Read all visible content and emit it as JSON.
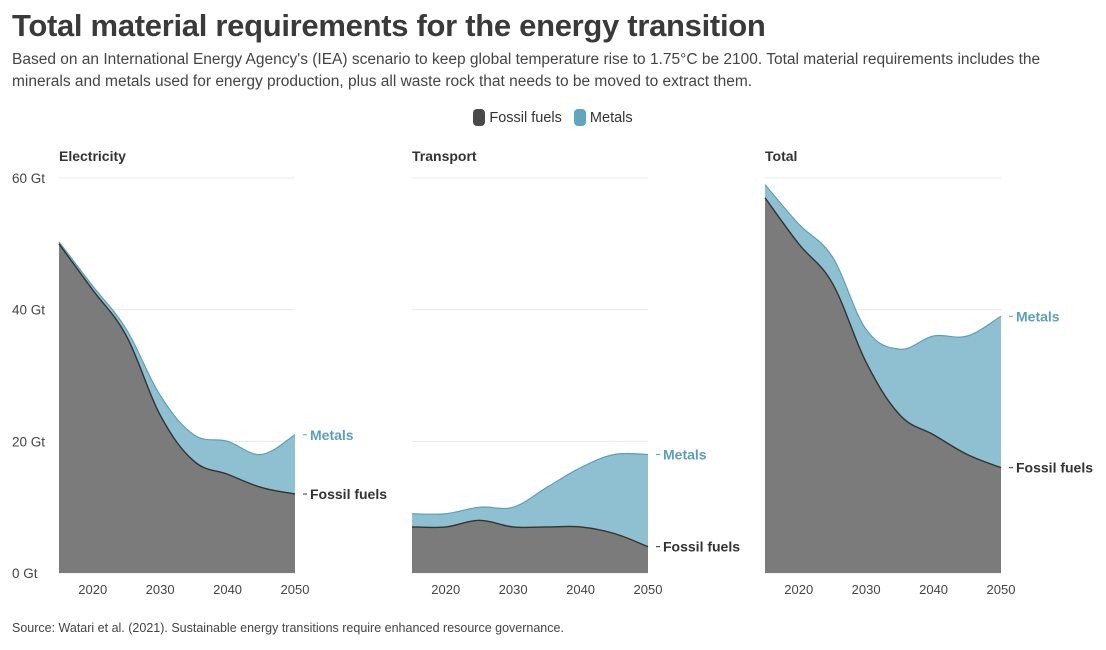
{
  "header": {
    "title": "Total material requirements for the energy transition",
    "subtitle": "Based on an International Energy Agency's (IEA) scenario to keep global temperature rise to 1.75°C be 2100. Total material requirements includes the minerals and metals used for energy production, plus all waste rock that needs to be moved to extract them."
  },
  "legend": [
    {
      "label": "Fossil fuels",
      "color": "#4a4a4a"
    },
    {
      "label": "Metals",
      "color": "#62a5be"
    }
  ],
  "source": "Source: Watari et al. (2021). Sustainable energy transitions require enhanced resource governance.",
  "colors": {
    "fossil_fill": "#7b7b7b",
    "fossil_line": "#333333",
    "metals_fill": "#8ec0d1",
    "metals_line": "#5e9fb8",
    "metals_label": "#5e9fb8",
    "fossil_label": "#333333",
    "grid": "#e8e8e8"
  },
  "chart_data": [
    {
      "type": "area",
      "stacked": true,
      "title": "Electricity",
      "x": [
        2015,
        2020,
        2025,
        2030,
        2035,
        2040,
        2045,
        2050
      ],
      "xticks": [
        2020,
        2030,
        2040,
        2050
      ],
      "xlim": [
        2015,
        2050
      ],
      "ylim": [
        0,
        60
      ],
      "yticks": [
        0,
        20,
        40,
        60
      ],
      "ytick_labels": [
        "0 Gt",
        "20 Gt",
        "40 Gt",
        "60 Gt"
      ],
      "series": [
        {
          "name": "Fossil fuels",
          "values": [
            50,
            43,
            36,
            24,
            17,
            15,
            13,
            12
          ]
        },
        {
          "name": "Metals",
          "values": [
            0.3,
            0.6,
            1,
            3,
            4,
            5,
            5,
            9
          ]
        }
      ],
      "end_labels": [
        "Metals",
        "Fossil fuels"
      ]
    },
    {
      "type": "area",
      "stacked": true,
      "title": "Transport",
      "x": [
        2015,
        2020,
        2025,
        2030,
        2035,
        2040,
        2045,
        2050
      ],
      "xticks": [
        2020,
        2030,
        2040,
        2050
      ],
      "xlim": [
        2015,
        2050
      ],
      "ylim": [
        0,
        60
      ],
      "yticks": [
        0,
        20,
        40,
        60
      ],
      "series": [
        {
          "name": "Fossil fuels",
          "values": [
            7,
            7,
            8,
            7,
            7,
            7,
            6,
            4
          ]
        },
        {
          "name": "Metals",
          "values": [
            2,
            2,
            2,
            3,
            6,
            9,
            12,
            14
          ]
        }
      ],
      "end_labels": [
        "Metals",
        "Fossil fuels"
      ]
    },
    {
      "type": "area",
      "stacked": true,
      "title": "Total",
      "x": [
        2015,
        2020,
        2025,
        2030,
        2035,
        2040,
        2045,
        2050
      ],
      "xticks": [
        2020,
        2030,
        2040,
        2050
      ],
      "xlim": [
        2015,
        2050
      ],
      "ylim": [
        0,
        60
      ],
      "yticks": [
        0,
        20,
        40,
        60
      ],
      "series": [
        {
          "name": "Fossil fuels",
          "values": [
            57,
            50,
            44,
            32,
            24,
            21,
            18,
            16
          ]
        },
        {
          "name": "Metals",
          "values": [
            2,
            3,
            4,
            5,
            10,
            15,
            18,
            23
          ]
        }
      ],
      "end_labels": [
        "Metals",
        "Fossil fuels"
      ]
    }
  ]
}
